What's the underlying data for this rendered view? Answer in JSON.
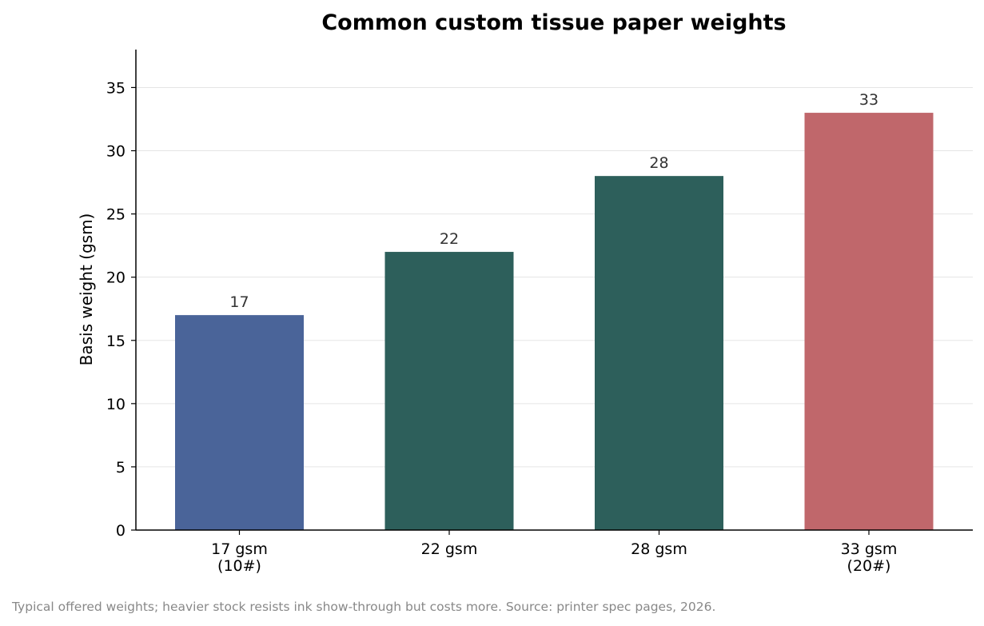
{
  "chart_data": {
    "type": "bar",
    "title": "Common custom tissue paper weights",
    "ylabel": "Basis weight (gsm)",
    "xlabel": "",
    "categories": [
      [
        "17 gsm",
        "(10#)"
      ],
      [
        "22 gsm"
      ],
      [
        "28 gsm"
      ],
      [
        "33 gsm",
        "(20#)"
      ]
    ],
    "values": [
      17,
      22,
      28,
      33
    ],
    "data_labels": [
      "17",
      "22",
      "28",
      "33"
    ],
    "colors": [
      "#4a6499",
      "#2d5f5b",
      "#2d5f5b",
      "#c0676b"
    ],
    "ylim": [
      0,
      38
    ],
    "yticks": [
      0,
      5,
      10,
      15,
      20,
      25,
      30,
      35
    ],
    "grid": true,
    "caption": "Typical offered weights; heavier stock resists ink show-through but costs more. Source: printer spec pages, 2026."
  }
}
